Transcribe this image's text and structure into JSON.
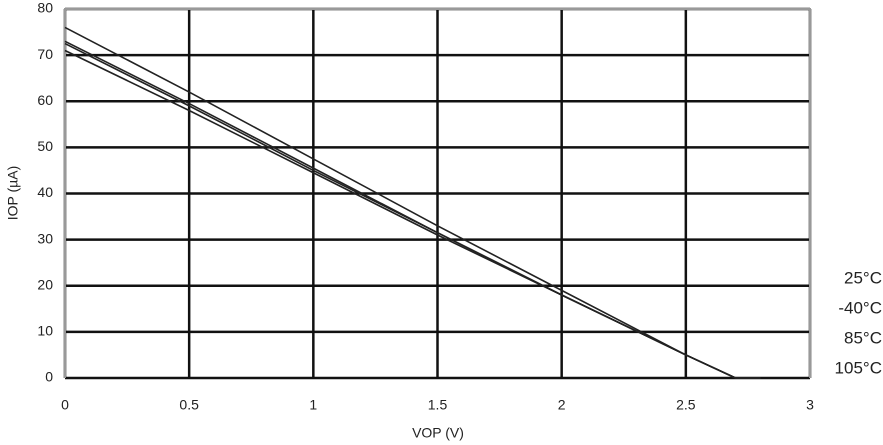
{
  "chart_data": {
    "type": "line",
    "x_label": "VOP (V)",
    "y_label": "IOP (µA)",
    "x": [
      0,
      0.5,
      1,
      1.5,
      2,
      2.5,
      2.7,
      2.8
    ],
    "series": [
      {
        "name": "25°C",
        "color": "#222222",
        "values": [
          76,
          62,
          47.5,
          33,
          19,
          5,
          0,
          0
        ]
      },
      {
        "name": "-40°C",
        "color": "#222222",
        "values": [
          73,
          59.5,
          45.5,
          31.5,
          18,
          5,
          0,
          0
        ]
      },
      {
        "name": "85°C",
        "color": "#222222",
        "values": [
          72.5,
          59,
          45,
          31.5,
          18,
          5,
          0,
          0
        ]
      },
      {
        "name": "105°C",
        "color": "#222222",
        "values": [
          71,
          58,
          44.5,
          31,
          18,
          5,
          0,
          0
        ]
      }
    ],
    "xlim": [
      0,
      3
    ],
    "xticks": [
      0,
      0.5,
      1,
      1.5,
      2,
      2.5,
      3
    ],
    "ylim": [
      0,
      80
    ],
    "yticks": [
      0,
      10,
      20,
      30,
      40,
      50,
      60,
      70,
      80
    ],
    "grid": true
  }
}
